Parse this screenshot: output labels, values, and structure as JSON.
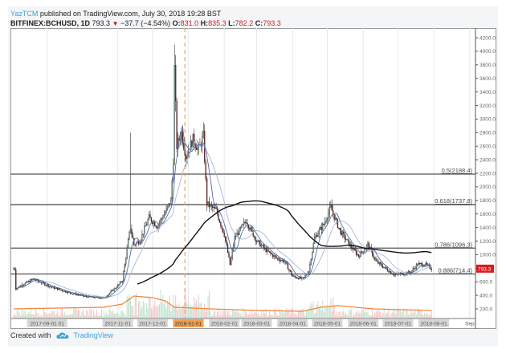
{
  "header": {
    "author": "YazTCM",
    "published": "published on TradingView.com, July 30, 2018 19:28 BST",
    "symbol": "BITFINEX:BCHUSD, 1D",
    "last": "793.3",
    "change": "−37.7 (−4.54%)",
    "o_label": "O:",
    "o_value": "831.0",
    "h_label": "H:",
    "h_value": "835.3",
    "l_label": "L:",
    "l_value": "782.2",
    "c_label": "C:",
    "c_value": "793.3"
  },
  "footer": {
    "created_with": "Created with",
    "brand": "TradingView"
  },
  "colors": {
    "up": "#8fa89a",
    "down": "#7a1e1e",
    "ma_long": "#111111",
    "ma_fast": "#4a6fa8",
    "ma_slow": "#a7b5d6",
    "volume_ma": "#f0843a",
    "fib_line": "#555555",
    "date_marker": "#f0a050",
    "price_tag": "#d81b1b"
  },
  "chart_data": {
    "type": "candlestick",
    "title": "BITFINEX:BCHUSD, 1D",
    "ylabel": "",
    "xlabel": "",
    "ylim": [
      0,
      4300
    ],
    "y_ticks": [
      "4200.0",
      "4000.0",
      "3800.0",
      "3600.0",
      "3400.0",
      "3200.0",
      "3000.0",
      "2800.0",
      "2600.0",
      "2400.0",
      "2200.0",
      "2000.0",
      "1800.0",
      "1600.0",
      "1400.0",
      "1200.0",
      "1000.0",
      "800.0",
      "600.0",
      "400.0",
      "200.0"
    ],
    "x_ticks": [
      "2017-09-01 01",
      "2017-11-01",
      "2017-12-01",
      "2018-01-01",
      "2018-02-01",
      "2018-03-01",
      "2018-04-01",
      "2018-05-01",
      "2018-06-01",
      "2018-07-01",
      "2018-08-01",
      "Sep"
    ],
    "highlighted_x_tick": "2018-01-01",
    "current_price_tag": "793.3",
    "grid": true,
    "fibonacci_levels": [
      {
        "ratio": "0.5",
        "price": 2188.4,
        "label": "0.5(2188.4)"
      },
      {
        "ratio": "0.618",
        "price": 1737.8,
        "label": "0.618(1737.8)"
      },
      {
        "ratio": "0.786",
        "price": 1096.3,
        "label": "0.786(1096.3)"
      },
      {
        "ratio": "0.886",
        "price": 714.4,
        "label": "0.886(714.4)"
      }
    ],
    "approx_close_path": [
      {
        "date": "2017-08-05",
        "close": 500
      },
      {
        "date": "2017-08-20",
        "close": 640
      },
      {
        "date": "2017-09-05",
        "close": 520
      },
      {
        "date": "2017-09-20",
        "close": 440
      },
      {
        "date": "2017-10-05",
        "close": 380
      },
      {
        "date": "2017-10-20",
        "close": 360
      },
      {
        "date": "2017-11-01",
        "close": 540
      },
      {
        "date": "2017-11-05",
        "close": 620
      },
      {
        "date": "2017-11-10",
        "close": 1200
      },
      {
        "date": "2017-11-12",
        "close": 1400
      },
      {
        "date": "2017-11-15",
        "close": 1150
      },
      {
        "date": "2017-11-20",
        "close": 1200
      },
      {
        "date": "2017-11-28",
        "close": 1550
      },
      {
        "date": "2017-12-05",
        "close": 1420
      },
      {
        "date": "2017-12-12",
        "close": 1620
      },
      {
        "date": "2017-12-17",
        "close": 1800
      },
      {
        "date": "2017-12-19",
        "close": 2400
      },
      {
        "date": "2017-12-20",
        "close": 3750
      },
      {
        "date": "2017-12-22",
        "close": 2600
      },
      {
        "date": "2017-12-26",
        "close": 2800
      },
      {
        "date": "2017-12-30",
        "close": 2450
      },
      {
        "date": "2018-01-05",
        "close": 2700
      },
      {
        "date": "2018-01-10",
        "close": 2550
      },
      {
        "date": "2018-01-14",
        "close": 2750
      },
      {
        "date": "2018-01-17",
        "close": 1750
      },
      {
        "date": "2018-01-25",
        "close": 1650
      },
      {
        "date": "2018-02-01",
        "close": 1300
      },
      {
        "date": "2018-02-06",
        "close": 850
      },
      {
        "date": "2018-02-10",
        "close": 1250
      },
      {
        "date": "2018-02-20",
        "close": 1500
      },
      {
        "date": "2018-03-01",
        "close": 1200
      },
      {
        "date": "2018-03-10",
        "close": 1050
      },
      {
        "date": "2018-03-18",
        "close": 950
      },
      {
        "date": "2018-03-25",
        "close": 900
      },
      {
        "date": "2018-04-01",
        "close": 680
      },
      {
        "date": "2018-04-10",
        "close": 640
      },
      {
        "date": "2018-04-15",
        "close": 760
      },
      {
        "date": "2018-04-20",
        "close": 1250
      },
      {
        "date": "2018-04-28",
        "close": 1450
      },
      {
        "date": "2018-05-04",
        "close": 1700
      },
      {
        "date": "2018-05-06",
        "close": 1600
      },
      {
        "date": "2018-05-12",
        "close": 1350
      },
      {
        "date": "2018-05-20",
        "close": 1150
      },
      {
        "date": "2018-05-28",
        "close": 980
      },
      {
        "date": "2018-06-05",
        "close": 1150
      },
      {
        "date": "2018-06-12",
        "close": 900
      },
      {
        "date": "2018-06-20",
        "close": 800
      },
      {
        "date": "2018-06-28",
        "close": 700
      },
      {
        "date": "2018-07-05",
        "close": 720
      },
      {
        "date": "2018-07-12",
        "close": 740
      },
      {
        "date": "2018-07-18",
        "close": 860
      },
      {
        "date": "2018-07-25",
        "close": 850
      },
      {
        "date": "2018-07-30",
        "close": 793.3
      }
    ],
    "moving_averages": [
      {
        "name": "long MA",
        "color": "#111111"
      },
      {
        "name": "fast MA",
        "color": "#4a6fa8"
      },
      {
        "name": "slow MA",
        "color": "#a7b5d6"
      }
    ],
    "volume_pane": true
  }
}
